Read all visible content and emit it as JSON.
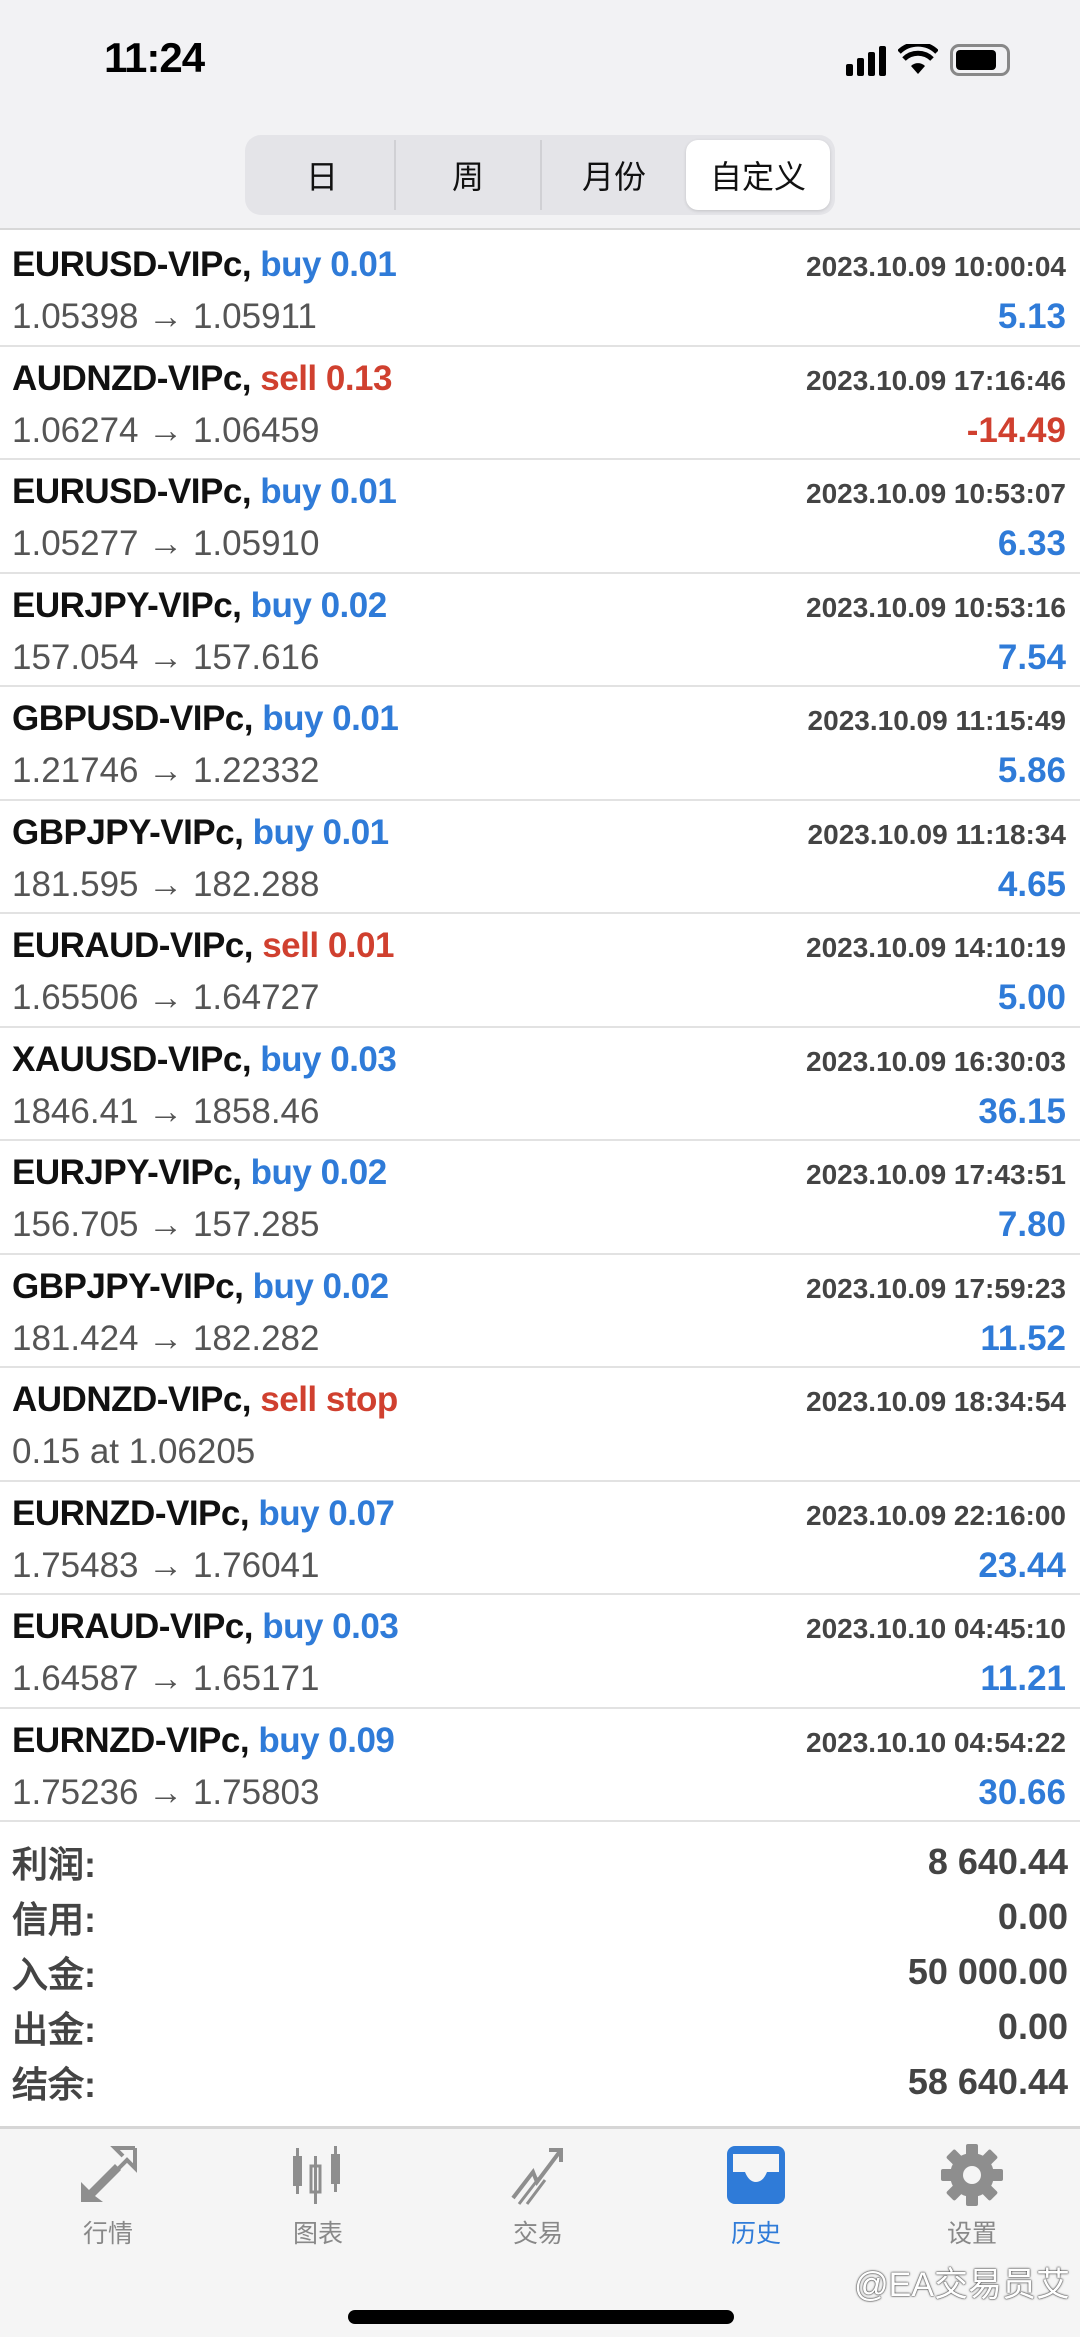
{
  "status_bar": {
    "time": "11:24"
  },
  "segments": [
    {
      "label": "日",
      "active": false
    },
    {
      "label": "周",
      "active": false
    },
    {
      "label": "月份",
      "active": false
    },
    {
      "label": "自定义",
      "active": true
    }
  ],
  "orders": [
    {
      "symbol": "EURUSD-VIPc,",
      "action": "buy 0.01",
      "side": "buy",
      "datetime": "2023.10.09 10:00:04",
      "prices": "1.05398 → 1.05911",
      "profit": "5.13"
    },
    {
      "symbol": "AUDNZD-VIPc,",
      "action": "sell 0.13",
      "side": "sell",
      "datetime": "2023.10.09 17:16:46",
      "prices": "1.06274 → 1.06459",
      "profit": "-14.49"
    },
    {
      "symbol": "EURUSD-VIPc,",
      "action": "buy 0.01",
      "side": "buy",
      "datetime": "2023.10.09 10:53:07",
      "prices": "1.05277 → 1.05910",
      "profit": "6.33"
    },
    {
      "symbol": "EURJPY-VIPc,",
      "action": "buy 0.02",
      "side": "buy",
      "datetime": "2023.10.09 10:53:16",
      "prices": "157.054 → 157.616",
      "profit": "7.54"
    },
    {
      "symbol": "GBPUSD-VIPc,",
      "action": "buy 0.01",
      "side": "buy",
      "datetime": "2023.10.09 11:15:49",
      "prices": "1.21746 → 1.22332",
      "profit": "5.86"
    },
    {
      "symbol": "GBPJPY-VIPc,",
      "action": "buy 0.01",
      "side": "buy",
      "datetime": "2023.10.09 11:18:34",
      "prices": "181.595 → 182.288",
      "profit": "4.65"
    },
    {
      "symbol": "EURAUD-VIPc,",
      "action": "sell 0.01",
      "side": "sell",
      "datetime": "2023.10.09 14:10:19",
      "prices": "1.65506 → 1.64727",
      "profit": "5.00"
    },
    {
      "symbol": "XAUUSD-VIPc,",
      "action": "buy 0.03",
      "side": "buy",
      "datetime": "2023.10.09 16:30:03",
      "prices": "1846.41 → 1858.46",
      "profit": "36.15"
    },
    {
      "symbol": "EURJPY-VIPc,",
      "action": "buy 0.02",
      "side": "buy",
      "datetime": "2023.10.09 17:43:51",
      "prices": "156.705 → 157.285",
      "profit": "7.80"
    },
    {
      "symbol": "GBPJPY-VIPc,",
      "action": "buy 0.02",
      "side": "buy",
      "datetime": "2023.10.09 17:59:23",
      "prices": "181.424 → 182.282",
      "profit": "11.52"
    },
    {
      "symbol": "AUDNZD-VIPc,",
      "action": "sell stop",
      "side": "sell",
      "datetime": "2023.10.09 18:34:54",
      "prices": "0.15 at 1.06205",
      "profit": ""
    },
    {
      "symbol": "EURNZD-VIPc,",
      "action": "buy 0.07",
      "side": "buy",
      "datetime": "2023.10.09 22:16:00",
      "prices": "1.75483 → 1.76041",
      "profit": "23.44"
    },
    {
      "symbol": "EURAUD-VIPc,",
      "action": "buy 0.03",
      "side": "buy",
      "datetime": "2023.10.10 04:45:10",
      "prices": "1.64587 → 1.65171",
      "profit": "11.21"
    },
    {
      "symbol": "EURNZD-VIPc,",
      "action": "buy 0.09",
      "side": "buy",
      "datetime": "2023.10.10 04:54:22",
      "prices": "1.75236 → 1.75803",
      "profit": "30.66"
    }
  ],
  "summary": [
    {
      "label": "利润:",
      "value": "8 640.44"
    },
    {
      "label": "信用:",
      "value": "0.00"
    },
    {
      "label": "入金:",
      "value": "50 000.00"
    },
    {
      "label": "出金:",
      "value": "0.00"
    },
    {
      "label": "结余:",
      "value": "58 640.44"
    }
  ],
  "tabs": [
    {
      "label": "行情",
      "icon": "arrows-icon",
      "active": false
    },
    {
      "label": "图表",
      "icon": "candlestick-icon",
      "active": false
    },
    {
      "label": "交易",
      "icon": "trade-trend-icon",
      "active": false
    },
    {
      "label": "历史",
      "icon": "inbox-history-icon",
      "active": true
    },
    {
      "label": "设置",
      "icon": "gear-icon",
      "active": false
    }
  ],
  "watermark": "@EA交易员艾",
  "colors": {
    "buy": "#2f7bd8",
    "sell": "#d0402f",
    "accent": "#2f7bd8"
  }
}
